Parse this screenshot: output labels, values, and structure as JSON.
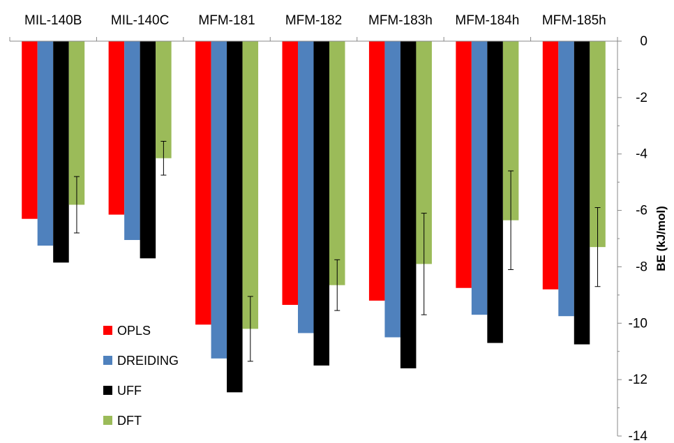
{
  "chart_data": {
    "type": "bar",
    "title": "",
    "xlabel": "",
    "ylabel": "BE (kJ/mol)",
    "ylim": [
      -14,
      0
    ],
    "yticks": [
      0,
      -2,
      -4,
      -6,
      -8,
      -10,
      -12,
      -14
    ],
    "x_axis_position": "top",
    "y_axis_position": "right",
    "grid": false,
    "legend_position": "bottom-left",
    "categories": [
      "MIL-140B",
      "MIL-140C",
      "MFM-181",
      "MFM-182",
      "MFM-183h",
      "MFM-184h",
      "MFM-185h"
    ],
    "series": [
      {
        "name": "OPLS",
        "color": "#ff0000",
        "values": [
          -6.3,
          -6.15,
          -10.05,
          -9.35,
          -9.2,
          -8.75,
          -8.8
        ]
      },
      {
        "name": "DREIDING",
        "color": "#4f81bd",
        "values": [
          -7.25,
          -7.05,
          -11.25,
          -10.35,
          -10.5,
          -9.7,
          -9.75
        ]
      },
      {
        "name": "UFF",
        "color": "#000000",
        "values": [
          -7.85,
          -7.7,
          -12.45,
          -11.5,
          -11.6,
          -10.7,
          -10.75
        ]
      },
      {
        "name": "DFT",
        "color": "#9bbb59",
        "values": [
          -5.8,
          -4.15,
          -10.2,
          -8.65,
          -7.9,
          -6.35,
          -7.3
        ],
        "error": [
          1.0,
          0.6,
          1.15,
          0.9,
          1.8,
          1.75,
          1.4
        ]
      }
    ]
  }
}
